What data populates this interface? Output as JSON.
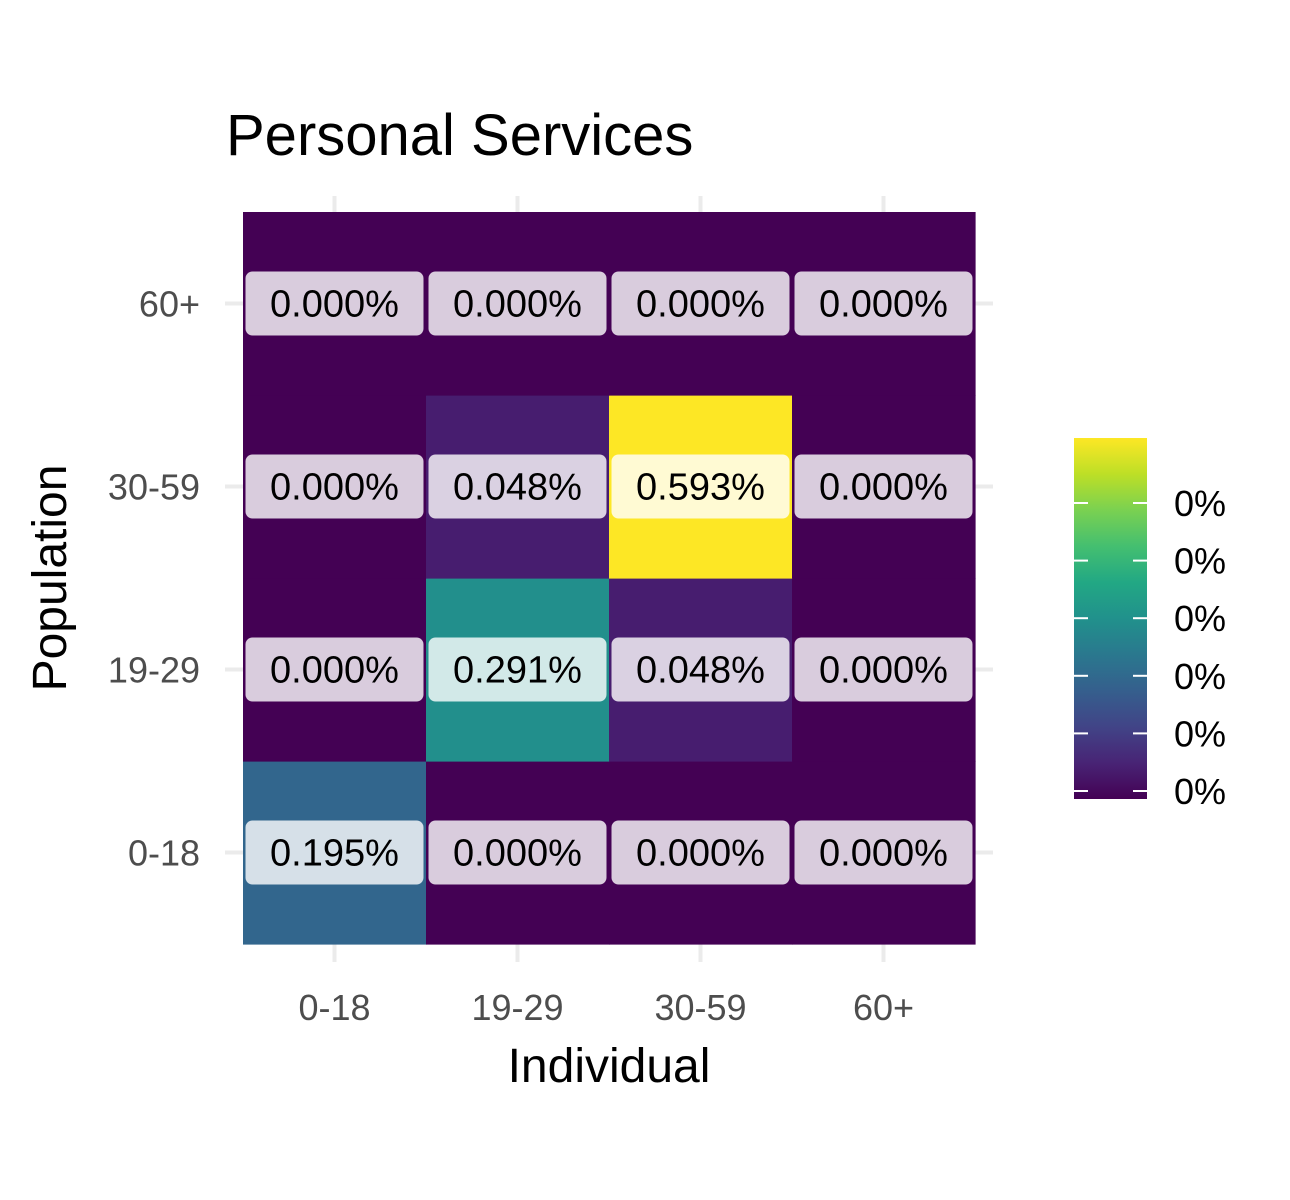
{
  "chart_data": {
    "type": "heatmap",
    "title": "Personal Services",
    "xlabel": "Individual",
    "ylabel": "Population",
    "x_categories": [
      "0-18",
      "19-29",
      "30-59",
      "60+"
    ],
    "y_categories": [
      "0-18",
      "19-29",
      "30-59",
      "60+"
    ],
    "values": [
      [
        0.195,
        0.0,
        0.0,
        0.0
      ],
      [
        0.0,
        0.291,
        0.048,
        0.0
      ],
      [
        0.0,
        0.048,
        0.593,
        0.0
      ],
      [
        0.0,
        0.0,
        0.0,
        0.0
      ]
    ],
    "cell_labels": [
      [
        "0.195%",
        "0.000%",
        "0.000%",
        "0.000%"
      ],
      [
        "0.000%",
        "0.291%",
        "0.048%",
        "0.000%"
      ],
      [
        "0.000%",
        "0.048%",
        "0.593%",
        "0.000%"
      ],
      [
        "0.000%",
        "0.000%",
        "0.000%",
        "0.000%"
      ]
    ],
    "value_range": [
      0,
      0.593
    ],
    "colorscale": "viridis",
    "legend": {
      "position": "right",
      "labels": [
        "0%",
        "0%",
        "0%",
        "0%",
        "0%",
        "0%"
      ]
    },
    "grid": true
  }
}
